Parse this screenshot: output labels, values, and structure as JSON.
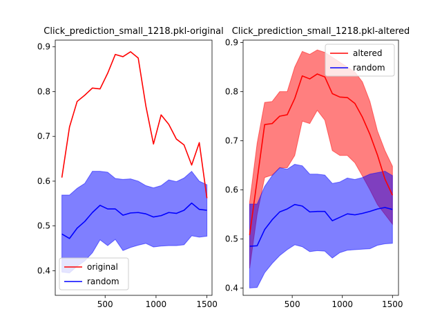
{
  "chart_data": [
    {
      "type": "line",
      "title": "Click_prediction_small_1218.pkl-original",
      "xlabel": "",
      "ylabel": "",
      "xlim": [
        10,
        1550
      ],
      "ylim": [
        0.345,
        0.915
      ],
      "xticks": [
        500,
        1000,
        1500
      ],
      "xtick_labels": [
        "500",
        "1000",
        "1500"
      ],
      "yticks": [
        0.4,
        0.5,
        0.6,
        0.7,
        0.8,
        0.9
      ],
      "ytick_labels": [
        "0.4",
        "0.5",
        "0.6",
        "0.7",
        "0.8",
        "0.9"
      ],
      "grid": false,
      "legend_position": "lower-left",
      "x": [
        75,
        150,
        225,
        300,
        375,
        450,
        525,
        600,
        675,
        750,
        825,
        900,
        975,
        1050,
        1125,
        1200,
        1275,
        1350,
        1425,
        1500
      ],
      "series": [
        {
          "name": "original",
          "color": "#ff0000",
          "values": [
            0.608,
            0.721,
            0.778,
            0.792,
            0.808,
            0.806,
            0.841,
            0.883,
            0.878,
            0.889,
            0.875,
            0.768,
            0.683,
            0.748,
            0.727,
            0.694,
            0.681,
            0.636,
            0.686,
            0.562
          ]
        },
        {
          "name": "random",
          "color": "#0000ff",
          "values": [
            0.482,
            0.472,
            0.495,
            0.51,
            0.53,
            0.546,
            0.538,
            0.538,
            0.524,
            0.529,
            0.53,
            0.527,
            0.52,
            0.523,
            0.53,
            0.528,
            0.535,
            0.551,
            0.537,
            0.535
          ],
          "band_lower": [
            0.397,
            0.395,
            0.41,
            0.422,
            0.44,
            0.469,
            0.456,
            0.47,
            0.445,
            0.452,
            0.457,
            0.461,
            0.453,
            0.455,
            0.456,
            0.456,
            0.458,
            0.478,
            0.475,
            0.477
          ],
          "band_upper": [
            0.569,
            0.569,
            0.584,
            0.595,
            0.622,
            0.622,
            0.62,
            0.606,
            0.604,
            0.605,
            0.6,
            0.59,
            0.585,
            0.59,
            0.603,
            0.599,
            0.607,
            0.622,
            0.6,
            0.592
          ]
        }
      ]
    },
    {
      "type": "line",
      "title": "Click_prediction_small_1218.pkl-altered",
      "xlabel": "",
      "ylabel": "",
      "xlim": [
        10,
        1560
      ],
      "ylim": [
        0.385,
        0.905
      ],
      "xticks": [
        500,
        1000,
        1500
      ],
      "xtick_labels": [
        "500",
        "1000",
        "1500"
      ],
      "yticks": [
        0.4,
        0.5,
        0.6,
        0.7,
        0.8,
        0.9
      ],
      "ytick_labels": [
        "0.4",
        "0.5",
        "0.6",
        "0.7",
        "0.8",
        "0.9"
      ],
      "grid": false,
      "legend_position": "upper-right",
      "x": [
        75,
        150,
        225,
        300,
        375,
        450,
        525,
        600,
        675,
        750,
        825,
        900,
        975,
        1050,
        1125,
        1200,
        1275,
        1350,
        1425,
        1500
      ],
      "series": [
        {
          "name": "altered",
          "color": "#ff0000",
          "values": [
            0.508,
            0.62,
            0.733,
            0.735,
            0.75,
            0.753,
            0.786,
            0.832,
            0.826,
            0.836,
            0.83,
            0.796,
            0.789,
            0.788,
            0.776,
            0.748,
            0.713,
            0.671,
            0.622,
            0.589
          ],
          "band_lower": [
            0.44,
            0.55,
            0.625,
            0.63,
            0.645,
            0.645,
            0.67,
            0.74,
            0.735,
            0.762,
            0.742,
            0.68,
            0.67,
            0.67,
            0.655,
            0.628,
            0.6,
            0.57,
            0.55,
            0.53
          ],
          "band_upper": [
            0.575,
            0.695,
            0.778,
            0.78,
            0.8,
            0.8,
            0.85,
            0.882,
            0.876,
            0.885,
            0.88,
            0.87,
            0.86,
            0.85,
            0.84,
            0.82,
            0.78,
            0.72,
            0.68,
            0.648
          ]
        },
        {
          "name": "random",
          "color": "#0000ff",
          "values": [
            0.485,
            0.486,
            0.519,
            0.539,
            0.555,
            0.561,
            0.57,
            0.567,
            0.555,
            0.556,
            0.556,
            0.537,
            0.544,
            0.551,
            0.549,
            0.552,
            0.556,
            0.561,
            0.564,
            0.56
          ],
          "band_lower": [
            0.4,
            0.401,
            0.431,
            0.45,
            0.466,
            0.478,
            0.488,
            0.484,
            0.474,
            0.476,
            0.475,
            0.461,
            0.472,
            0.477,
            0.478,
            0.479,
            0.48,
            0.487,
            0.49,
            0.491
          ],
          "band_upper": [
            0.571,
            0.571,
            0.607,
            0.629,
            0.645,
            0.642,
            0.652,
            0.649,
            0.632,
            0.632,
            0.63,
            0.613,
            0.616,
            0.624,
            0.621,
            0.625,
            0.632,
            0.635,
            0.638,
            0.629
          ]
        }
      ]
    }
  ]
}
